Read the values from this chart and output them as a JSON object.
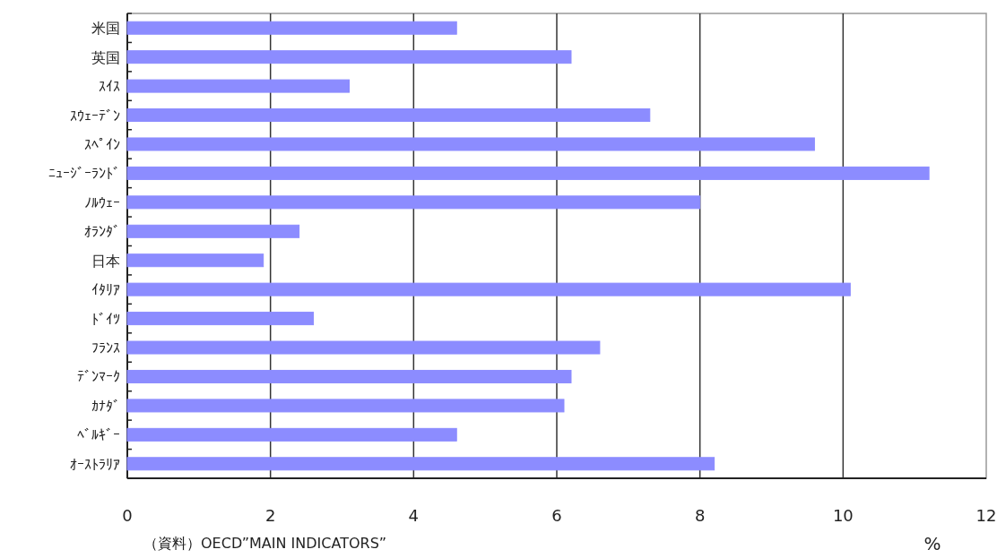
{
  "chart_data": {
    "type": "bar",
    "orientation": "horizontal",
    "categories": [
      "米国",
      "英国",
      "ｽｲｽ",
      "ｽｳｪｰﾃﾞﾝ",
      "ｽﾍﾟｲﾝ",
      "ﾆｭｰｼﾞｰﾗﾝﾄﾞ",
      "ﾉﾙｳｪｰ",
      "ｵﾗﾝﾀﾞ",
      "日本",
      "ｲﾀﾘｱ",
      "ﾄﾞｲﾂ",
      "ﾌﾗﾝｽ",
      "ﾃﾞﾝﾏｰｸ",
      "ｶﾅﾀﾞ",
      "ﾍﾞﾙｷﾞｰ",
      "ｵｰｽﾄﾗﾘｱ"
    ],
    "values": [
      4.6,
      6.2,
      3.1,
      7.3,
      9.6,
      11.2,
      8.0,
      2.4,
      1.9,
      10.1,
      2.6,
      6.6,
      6.2,
      6.1,
      4.6,
      8.2
    ],
    "color": "#8c8cff",
    "xlim": [
      0,
      12
    ],
    "xticks": [
      0,
      2,
      4,
      6,
      8,
      10,
      12
    ],
    "grid": "x",
    "xlabel": "%",
    "annotations": [
      "（資料）OECD”MAIN INDICATORS”"
    ]
  }
}
